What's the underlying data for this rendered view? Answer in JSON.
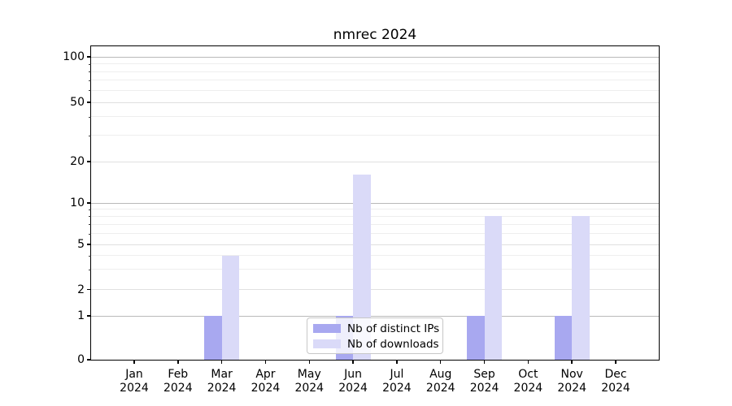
{
  "chart_data": {
    "type": "bar",
    "title": "nmrec 2024",
    "categories": [
      "Jan",
      "Feb",
      "Mar",
      "Apr",
      "May",
      "Jun",
      "Jul",
      "Aug",
      "Sep",
      "Oct",
      "Nov",
      "Dec"
    ],
    "year_label": "2024",
    "series": [
      {
        "name": "Nb of distinct IPs",
        "color": "#a8a8f0",
        "values": [
          0,
          0,
          1,
          0,
          0,
          1,
          0,
          0,
          1,
          0,
          1,
          0
        ]
      },
      {
        "name": "Nb of downloads",
        "color": "#dadaf8",
        "values": [
          0,
          0,
          4,
          0,
          0,
          16,
          0,
          0,
          8,
          0,
          8,
          0
        ]
      }
    ],
    "y_ticks": [
      0,
      1,
      2,
      5,
      10,
      20,
      50,
      100
    ],
    "y_tick_labels": [
      "0",
      "1",
      "2",
      "5",
      "10",
      "20",
      "50",
      "100"
    ],
    "y_minor_ticks": [
      3,
      4,
      6,
      7,
      8,
      9,
      30,
      40,
      60,
      70,
      80,
      90
    ],
    "yscale": "quasi-log",
    "ylim": [
      0,
      120
    ],
    "grid": true,
    "legend_position": "lower-center"
  },
  "colors": {
    "grid_decade": "#b9b9b9",
    "grid_major": "#e0e0e0",
    "grid_minor": "#eeeeee",
    "axis": "#000000",
    "legend_border": "#c7c7c7"
  }
}
